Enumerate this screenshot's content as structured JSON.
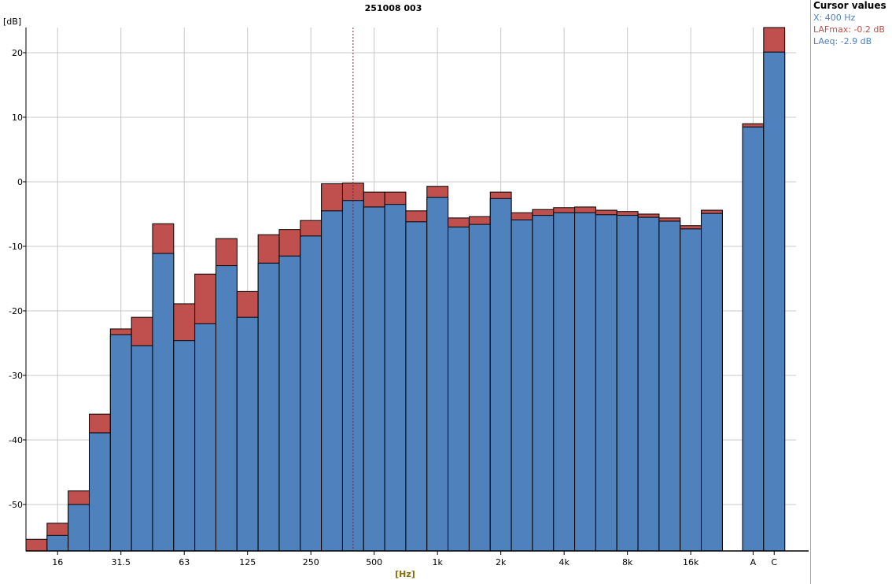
{
  "chart_data": {
    "type": "bar",
    "title": "251008 003",
    "ylabel": "[dB]",
    "xlabel": "[Hz]",
    "ylim": [
      -57.2,
      23.9
    ],
    "yticks": [
      20,
      10,
      0,
      -10,
      -20,
      -30,
      -40,
      -50
    ],
    "grid": true,
    "bands": [
      "12.5",
      "16",
      "20",
      "25",
      "31.5",
      "40",
      "50",
      "63",
      "80",
      "100",
      "125",
      "160",
      "200",
      "250",
      "315",
      "400",
      "500",
      "630",
      "800",
      "1k",
      "1.25k",
      "1.6k",
      "2k",
      "2.5k",
      "3.15k",
      "4k",
      "5k",
      "6.3k",
      "8k",
      "10k",
      "12.5k",
      "16k",
      "20k"
    ],
    "xtick_labels": [
      "16",
      "31.5",
      "63",
      "125",
      "250",
      "500",
      "1k",
      "2k",
      "4k",
      "8k",
      "16k"
    ],
    "overall_labels": [
      "A",
      "C"
    ],
    "series": [
      {
        "name": "LAFmax",
        "color": "#c0504d",
        "values": [
          -55.4,
          -52.9,
          -47.9,
          -36.0,
          -22.8,
          -21.0,
          -6.5,
          -18.9,
          -14.3,
          -8.8,
          -17.0,
          -8.2,
          -7.4,
          -6.0,
          -0.3,
          -0.2,
          -1.6,
          -1.6,
          -4.5,
          -0.7,
          -5.6,
          -5.4,
          -1.6,
          -4.8,
          -4.3,
          -4.0,
          -3.9,
          -4.4,
          -4.6,
          -5.0,
          -5.6,
          -6.8,
          -4.4
        ],
        "overall": [
          9.0,
          23.9
        ]
      },
      {
        "name": "LAeq",
        "color": "#4f81bd",
        "values": [
          -58.0,
          -54.8,
          -50.0,
          -38.9,
          -23.7,
          -25.4,
          -11.1,
          -24.6,
          -22.0,
          -13.0,
          -21.0,
          -12.6,
          -11.5,
          -8.4,
          -4.5,
          -2.9,
          -3.9,
          -3.5,
          -6.2,
          -2.4,
          -7.0,
          -6.6,
          -2.6,
          -5.9,
          -5.2,
          -4.8,
          -4.8,
          -5.1,
          -5.2,
          -5.5,
          -6.1,
          -7.3,
          -4.9
        ],
        "overall": [
          8.5,
          20.1
        ]
      }
    ],
    "cursor_band": "400"
  },
  "cursor_panel": {
    "title": "Cursor values",
    "x": "X: 400 Hz",
    "lafmax": "LAFmax: -0.2 dB",
    "laeq": "LAeq: -2.9 dB"
  }
}
